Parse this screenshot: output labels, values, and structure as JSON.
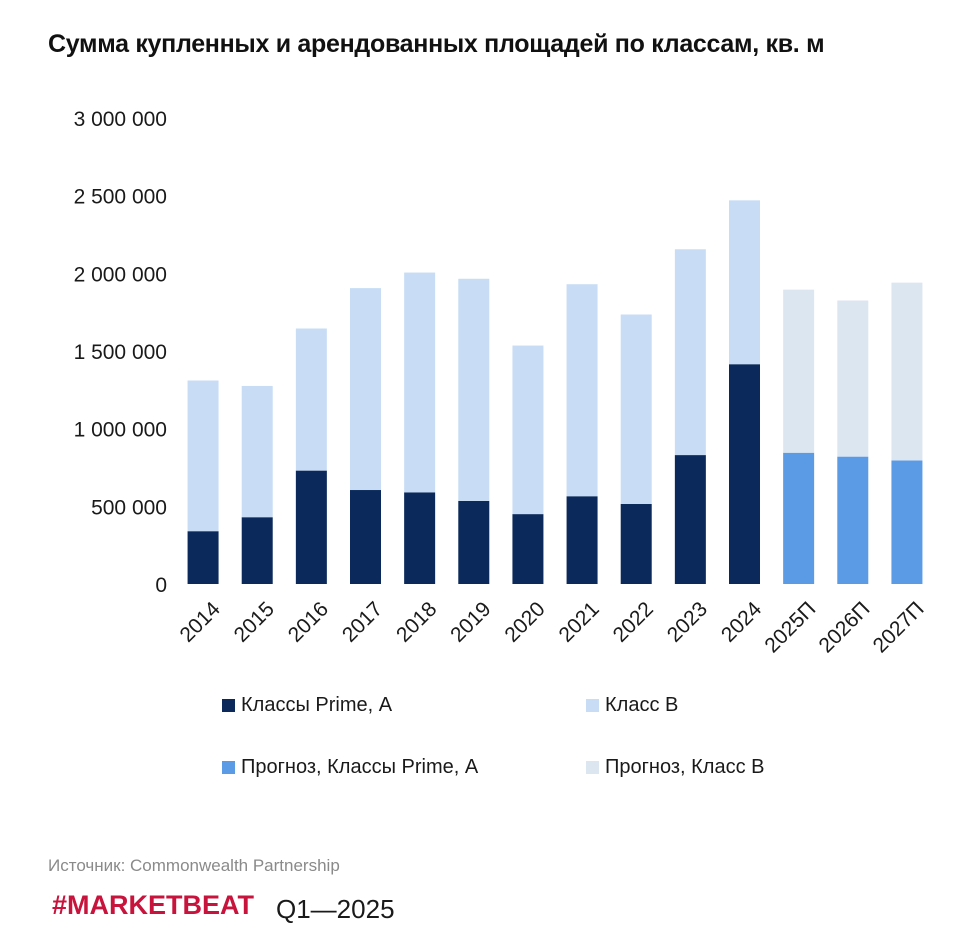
{
  "header": {
    "title": "Сумма купленных и арендованных площадей по классам, кв. м"
  },
  "chart_data": {
    "type": "bar",
    "stacked": true,
    "title": "Сумма купленных и арендованных площадей по классам, кв. м",
    "xlabel": "",
    "ylabel": "",
    "ylim": [
      0,
      3000000
    ],
    "yticks": [
      0,
      500000,
      1000000,
      1500000,
      2000000,
      2500000,
      3000000
    ],
    "ytick_labels": [
      "0",
      "500 000",
      "1 000 000",
      "1 500 000",
      "2 000 000",
      "2 500 000",
      "3 000 000"
    ],
    "grid": false,
    "categories": [
      "2014",
      "2015",
      "2016",
      "2017",
      "2018",
      "2019",
      "2020",
      "2021",
      "2022",
      "2023",
      "2024",
      "2025П",
      "2026П",
      "2027П"
    ],
    "series": [
      {
        "name": "Классы Prime, А",
        "color": "#0b2a5b",
        "values": [
          340000,
          430000,
          730000,
          605000,
          590000,
          535000,
          450000,
          565000,
          515000,
          830000,
          1415000,
          null,
          null,
          null
        ]
      },
      {
        "name": "Класс В",
        "color": "#c8ddf5",
        "values": [
          970000,
          845000,
          915000,
          1300000,
          1415000,
          1430000,
          1085000,
          1365000,
          1220000,
          1325000,
          1055000,
          null,
          null,
          null
        ]
      },
      {
        "name": "Прогноз, Классы Prime, А",
        "color": "#5b9be6",
        "values": [
          null,
          null,
          null,
          null,
          null,
          null,
          null,
          null,
          null,
          null,
          null,
          845000,
          820000,
          795000
        ]
      },
      {
        "name": "Прогноз, Класс В",
        "color": "#dce6f1",
        "values": [
          null,
          null,
          null,
          null,
          null,
          null,
          null,
          null,
          null,
          null,
          null,
          1050000,
          1005000,
          1145000
        ]
      }
    ],
    "legend_position": "bottom"
  },
  "legend": {
    "items": [
      {
        "label": "Классы Prime, А",
        "color": "#0b2a5b"
      },
      {
        "label": "Класс В",
        "color": "#c8ddf5"
      },
      {
        "label": "Прогноз, Классы Prime, А",
        "color": "#5b9be6"
      },
      {
        "label": "Прогноз, Класс В",
        "color": "#dce6f1"
      }
    ]
  },
  "footer": {
    "source": "Источник: Commonwealth Partnership",
    "brand": "#MARKETBEAT",
    "brand_color": "#c8143c",
    "period": "Q1—2025"
  }
}
